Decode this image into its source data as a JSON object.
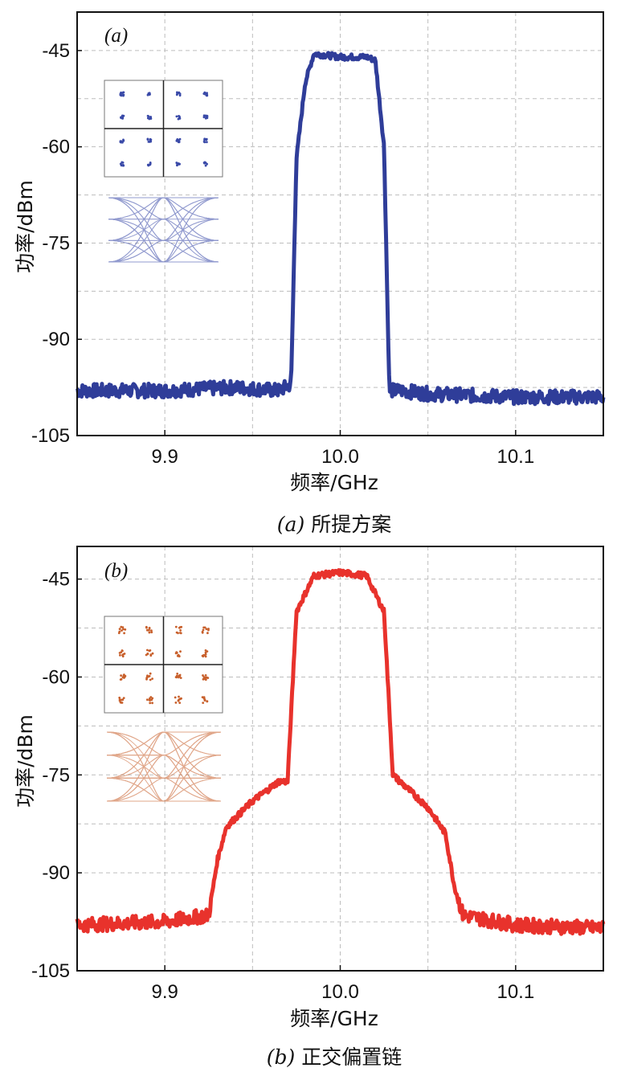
{
  "chart_data": [
    {
      "type": "line",
      "panel_label": "(a)",
      "caption_prefix": "(a)",
      "caption_text": "所提方案",
      "xlabel": "频率/GHz",
      "ylabel": "功率/dBm",
      "xlim": [
        9.85,
        10.15
      ],
      "ylim": [
        -105,
        -39
      ],
      "x_ticks": [
        "9.9",
        "10.0",
        "10.1"
      ],
      "y_ticks": [
        "-45",
        "-60",
        "-75",
        "-90",
        "-105"
      ],
      "grid": true,
      "color": "#2f3d99",
      "inset_color": "#3a4aa8",
      "series": [
        {
          "x": [
            9.85,
            9.9,
            9.94,
            9.965,
            9.972,
            9.975,
            9.98,
            9.985,
            10.0,
            10.015,
            10.02,
            10.025,
            10.028,
            10.035,
            10.05,
            10.1,
            10.15
          ],
          "values": [
            -98,
            -98,
            -97.5,
            -98,
            -97,
            -62,
            -50,
            -45.5,
            -46,
            -46,
            -46.5,
            -60,
            -98,
            -98,
            -98.5,
            -99,
            -99
          ]
        }
      ]
    },
    {
      "type": "line",
      "panel_label": "(b)",
      "caption_prefix": "(b)",
      "caption_text": "正交偏置链",
      "xlabel": "频率/GHz",
      "ylabel": "功率/dBm",
      "xlim": [
        9.85,
        10.15
      ],
      "ylim": [
        -105,
        -40
      ],
      "x_ticks": [
        "9.9",
        "10.0",
        "10.1"
      ],
      "y_ticks": [
        "-45",
        "-60",
        "-75",
        "-90",
        "-105"
      ],
      "grid": true,
      "color": "#e8322c",
      "inset_color": "#c8602c",
      "series": [
        {
          "x": [
            9.85,
            9.9,
            9.925,
            9.93,
            9.935,
            9.95,
            9.965,
            9.97,
            9.975,
            9.985,
            10.0,
            10.015,
            10.025,
            10.03,
            10.05,
            10.06,
            10.065,
            10.07,
            10.1,
            10.15
          ],
          "values": [
            -98,
            -97.5,
            -96.5,
            -88,
            -83,
            -79,
            -76,
            -76,
            -50,
            -44.5,
            -44,
            -44.5,
            -50,
            -75,
            -80,
            -84,
            -92,
            -96.5,
            -98,
            -98.5
          ]
        }
      ]
    }
  ]
}
